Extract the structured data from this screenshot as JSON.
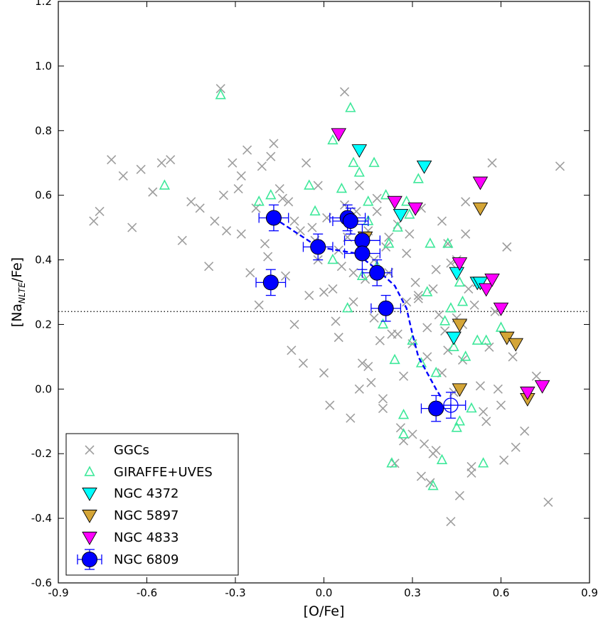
{
  "chart_data": {
    "type": "scatter",
    "xlabel": "[O/Fe]",
    "ylabel_main": "[Na",
    "ylabel_sub": "NLTE",
    "ylabel_tail": "/Fe]",
    "xlim": [
      -0.9,
      0.9
    ],
    "ylim": [
      -0.6,
      1.2
    ],
    "xticks": [
      -0.9,
      -0.6,
      -0.3,
      0.0,
      0.3,
      0.6,
      0.9
    ],
    "xtick_labels": [
      "-0.9",
      "-0.6",
      "-0.3",
      "0.0",
      "0.3",
      "0.6",
      "0.9"
    ],
    "yticks": [
      -0.6,
      -0.4,
      -0.2,
      0.0,
      0.2,
      0.4,
      0.6,
      0.8,
      1.0,
      1.2
    ],
    "ytick_labels": [
      "-0.6",
      "-0.4",
      "-0.2",
      "0.0",
      "0.2",
      "0.4",
      "0.6",
      "0.8",
      "1.0",
      "1.2"
    ],
    "hline": 0.24,
    "legend_position": "lower-left",
    "series": [
      {
        "name": "GGCs",
        "marker": "x",
        "color": "#9e9e9e",
        "x": [
          -0.78,
          -0.76,
          -0.72,
          -0.68,
          -0.65,
          -0.62,
          -0.58,
          -0.55,
          -0.52,
          -0.48,
          -0.45,
          -0.42,
          -0.39,
          -0.37,
          -0.35,
          -0.33,
          -0.31,
          -0.29,
          -0.28,
          -0.26,
          -0.25,
          -0.23,
          -0.21,
          -0.2,
          -0.18,
          -0.17,
          -0.15,
          -0.13,
          -0.12,
          -0.1,
          -0.08,
          -0.06,
          -0.05,
          -0.03,
          -0.02,
          0.0,
          0.01,
          0.03,
          0.05,
          0.07,
          0.08,
          0.1,
          0.12,
          0.13,
          0.15,
          0.17,
          0.18,
          0.2,
          0.22,
          0.23,
          0.25,
          0.27,
          0.28,
          0.3,
          0.32,
          0.33,
          0.35,
          0.37,
          0.38,
          0.4,
          0.42,
          0.43,
          0.45,
          0.47,
          0.48,
          0.5,
          0.52,
          0.55,
          0.57,
          0.6,
          0.62,
          0.65,
          0.68,
          0.72,
          0.76,
          0.8,
          -0.34,
          -0.28,
          -0.19,
          -0.11,
          -0.04,
          0.02,
          0.06,
          0.11,
          0.16,
          0.21,
          0.26,
          0.31,
          0.36,
          0.41,
          0.46,
          0.51,
          0.56,
          0.61,
          -0.22,
          -0.14,
          -0.07,
          0.04,
          0.09,
          0.14,
          0.19,
          0.24,
          0.29,
          0.34,
          0.39,
          0.44,
          0.49,
          0.54,
          0.59,
          0.64,
          0.0,
          0.1,
          0.2,
          0.3,
          0.4,
          0.5,
          0.15,
          0.25,
          0.35,
          0.45,
          0.05,
          0.28,
          0.38,
          0.48,
          0.58,
          -0.1,
          -0.02,
          0.18,
          0.33,
          0.43,
          0.53,
          0.22,
          0.12,
          0.32,
          0.42,
          0.27,
          0.37,
          0.47,
          0.17,
          0.07
        ],
        "y": [
          0.52,
          0.55,
          0.71,
          0.66,
          0.5,
          0.68,
          0.61,
          0.7,
          0.71,
          0.46,
          0.58,
          0.56,
          0.38,
          0.52,
          0.93,
          0.49,
          0.7,
          0.62,
          0.48,
          0.74,
          0.36,
          0.56,
          0.69,
          0.45,
          0.72,
          0.76,
          0.62,
          0.35,
          0.58,
          0.2,
          0.49,
          0.7,
          0.29,
          0.46,
          0.63,
          0.05,
          0.53,
          0.31,
          0.16,
          0.92,
          0.47,
          0.27,
          0.63,
          0.08,
          0.49,
          0.22,
          0.55,
          -0.06,
          0.36,
          0.17,
          0.51,
          0.04,
          0.42,
          -0.14,
          0.29,
          0.56,
          0.1,
          -0.2,
          0.37,
          0.05,
          0.45,
          -0.41,
          0.22,
          0.09,
          0.48,
          -0.26,
          0.33,
          -0.1,
          0.7,
          -0.05,
          0.44,
          -0.18,
          -0.13,
          0.04,
          -0.35,
          0.69,
          0.6,
          0.66,
          0.41,
          0.12,
          0.5,
          -0.05,
          0.38,
          0.55,
          0.02,
          0.44,
          -0.12,
          0.33,
          -0.29,
          0.18,
          -0.33,
          0.26,
          0.13,
          -0.22,
          0.26,
          0.59,
          0.08,
          0.21,
          -0.09,
          0.34,
          0.15,
          -0.23,
          0.48,
          -0.17,
          0.23,
          -0.01,
          0.31,
          -0.07,
          0.0,
          0.1,
          0.3,
          0.36,
          -0.03,
          0.14,
          0.52,
          -0.24,
          0.07,
          0.17,
          0.19,
          0.4,
          0.43,
          0.27,
          -0.19,
          0.58,
          0.24,
          0.52,
          0.4,
          0.59,
          -0.27,
          0.39,
          0.01,
          0.47,
          0.0,
          0.28,
          0.12,
          -0.16,
          0.31,
          0.2,
          0.4,
          0.57
        ]
      },
      {
        "name": "GIRAFFE+UVES",
        "marker": "triangle-up",
        "color": "#3ee89a",
        "x": [
          -0.35,
          -0.54,
          -0.22,
          -0.18,
          -0.05,
          -0.03,
          0.03,
          0.06,
          0.08,
          0.09,
          0.1,
          0.12,
          0.13,
          0.15,
          0.17,
          0.18,
          0.2,
          0.22,
          0.23,
          0.25,
          0.27,
          0.28,
          0.3,
          0.32,
          0.33,
          0.35,
          0.37,
          0.38,
          0.4,
          0.42,
          0.43,
          0.45,
          0.46,
          0.48,
          0.5,
          0.52,
          0.54,
          0.55,
          0.6,
          0.24,
          0.36,
          0.41,
          0.47,
          0.44,
          0.03,
          0.15,
          0.21,
          0.27,
          0.29,
          0.46
        ],
        "y": [
          0.91,
          0.63,
          0.58,
          0.6,
          0.63,
          0.55,
          0.77,
          0.62,
          0.25,
          0.87,
          0.7,
          0.67,
          0.35,
          0.52,
          0.7,
          0.38,
          0.2,
          0.45,
          -0.23,
          0.5,
          -0.08,
          0.58,
          0.15,
          0.65,
          0.08,
          0.3,
          -0.3,
          0.05,
          -0.22,
          0.45,
          0.25,
          -0.12,
          0.33,
          0.1,
          -0.06,
          0.15,
          -0.23,
          0.15,
          0.19,
          0.09,
          0.45,
          0.21,
          0.27,
          0.13,
          0.4,
          0.58,
          0.6,
          -0.14,
          0.54,
          -0.1
        ]
      },
      {
        "name": "NGC 4372",
        "marker": "triangle-down",
        "color": "#00ffff",
        "x": [
          0.12,
          0.34,
          0.26,
          0.44,
          0.45,
          0.52,
          0.53
        ],
        "y": [
          0.74,
          0.69,
          0.54,
          0.16,
          0.36,
          0.33,
          0.33
        ]
      },
      {
        "name": "NGC 5897",
        "marker": "triangle-down",
        "color": "#d4a537",
        "x": [
          0.14,
          0.46,
          0.53,
          0.62,
          0.65,
          0.69,
          0.46
        ],
        "y": [
          0.47,
          0.2,
          0.56,
          0.16,
          0.14,
          -0.03,
          0.0
        ]
      },
      {
        "name": "NGC 4833",
        "marker": "triangle-down",
        "color": "#ff00ff",
        "x": [
          0.05,
          0.24,
          0.31,
          0.46,
          0.53,
          0.55,
          0.57,
          0.6,
          0.69,
          0.74
        ],
        "y": [
          0.79,
          0.58,
          0.56,
          0.39,
          0.64,
          0.31,
          0.34,
          0.25,
          -0.01,
          0.01
        ]
      },
      {
        "name": "NGC 6809",
        "marker": "circle",
        "color": "#0000ff",
        "x": [
          -0.17,
          -0.18,
          -0.02,
          0.08,
          0.09,
          0.13,
          0.13,
          0.18,
          0.21,
          0.38
        ],
        "y": [
          0.53,
          0.33,
          0.44,
          0.53,
          0.52,
          0.46,
          0.42,
          0.36,
          0.25,
          -0.06
        ],
        "xerr": [
          0.05,
          0.05,
          0.05,
          0.06,
          0.06,
          0.06,
          0.06,
          0.05,
          0.05,
          0.05
        ],
        "yerr": [
          0.04,
          0.04,
          0.04,
          0.04,
          0.04,
          0.05,
          0.05,
          0.04,
          0.04,
          0.04
        ]
      }
    ],
    "open_point": {
      "x": 0.43,
      "y": -0.05,
      "xerr": 0.05,
      "yerr": 0.04,
      "color": "#0000ff"
    },
    "trend_line": {
      "x": [
        -0.17,
        -0.02,
        0.11,
        0.18,
        0.24,
        0.28,
        0.3,
        0.32,
        0.35,
        0.38,
        0.4
      ],
      "y": [
        0.53,
        0.44,
        0.42,
        0.37,
        0.32,
        0.25,
        0.17,
        0.1,
        0.05,
        0.0,
        -0.03
      ],
      "color": "#0000ff"
    }
  }
}
